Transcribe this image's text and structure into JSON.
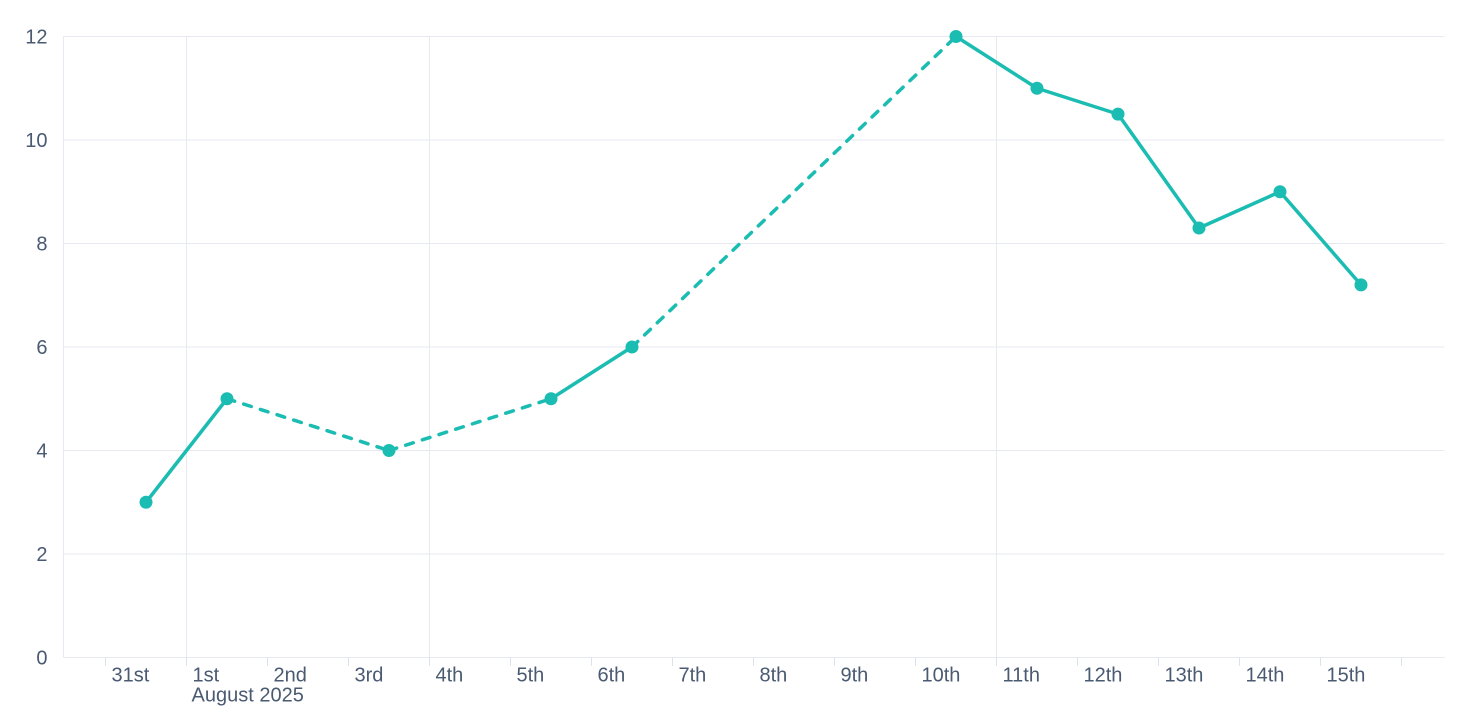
{
  "chart_data": {
    "type": "line",
    "title": "",
    "xlabel": "",
    "ylabel": "",
    "legend": false,
    "x_axis": {
      "type": "datetime",
      "month_label": "August 2025",
      "month_label_under_tick": 1,
      "tick_labels": [
        "31st",
        "1st",
        "2nd",
        "3rd",
        "4th",
        "5th",
        "6th",
        "7th",
        "8th",
        "9th",
        "10th",
        "11th",
        "12th",
        "13th",
        "14th",
        "15th"
      ],
      "trailing_unlabeled_ticks": 1
    },
    "y_axis": {
      "tick_labels": [
        "0",
        "2",
        "4",
        "6",
        "8",
        "10",
        "12"
      ],
      "tick_values": [
        0,
        2,
        4,
        6,
        8,
        10,
        12
      ],
      "range": [
        0,
        12
      ],
      "grid": true
    },
    "vertical_gridline_days": [
      1,
      4,
      11
    ],
    "left_border": true,
    "series": [
      {
        "name": "series-1",
        "color": "#1bbcb2",
        "marker": "circle",
        "points": [
          {
            "date": "2025-07-31",
            "label": "31st",
            "day": 0,
            "value": 3,
            "line_to_next": "solid"
          },
          {
            "date": "2025-08-01",
            "label": "1st",
            "day": 1,
            "value": 5,
            "line_to_next": "dashed"
          },
          {
            "date": "2025-08-03",
            "label": "3rd",
            "day": 3,
            "value": 4,
            "line_to_next": "dashed"
          },
          {
            "date": "2025-08-05",
            "label": "5th",
            "day": 5,
            "value": 5,
            "line_to_next": "solid"
          },
          {
            "date": "2025-08-06",
            "label": "6th",
            "day": 6,
            "value": 6,
            "line_to_next": "dashed"
          },
          {
            "date": "2025-08-10",
            "label": "10th",
            "day": 10,
            "value": 12,
            "line_to_next": "solid"
          },
          {
            "date": "2025-08-11",
            "label": "11th",
            "day": 11,
            "value": 11,
            "line_to_next": "solid"
          },
          {
            "date": "2025-08-12",
            "label": "12th",
            "day": 12,
            "value": 10.5,
            "line_to_next": "solid"
          },
          {
            "date": "2025-08-13",
            "label": "13th",
            "day": 13,
            "value": 8.3,
            "line_to_next": "solid"
          },
          {
            "date": "2025-08-14",
            "label": "14th",
            "day": 14,
            "value": 9,
            "line_to_next": "solid"
          },
          {
            "date": "2025-08-15",
            "label": "15th",
            "day": 15,
            "value": 7.2,
            "line_to_next": "none"
          }
        ]
      }
    ],
    "colors": {
      "background": "#ffffff",
      "gridline": "#e6e9f1",
      "tick_mark": "#dce1ed",
      "axis_text": "#4a5a72",
      "series": "#1bbcb2"
    }
  }
}
